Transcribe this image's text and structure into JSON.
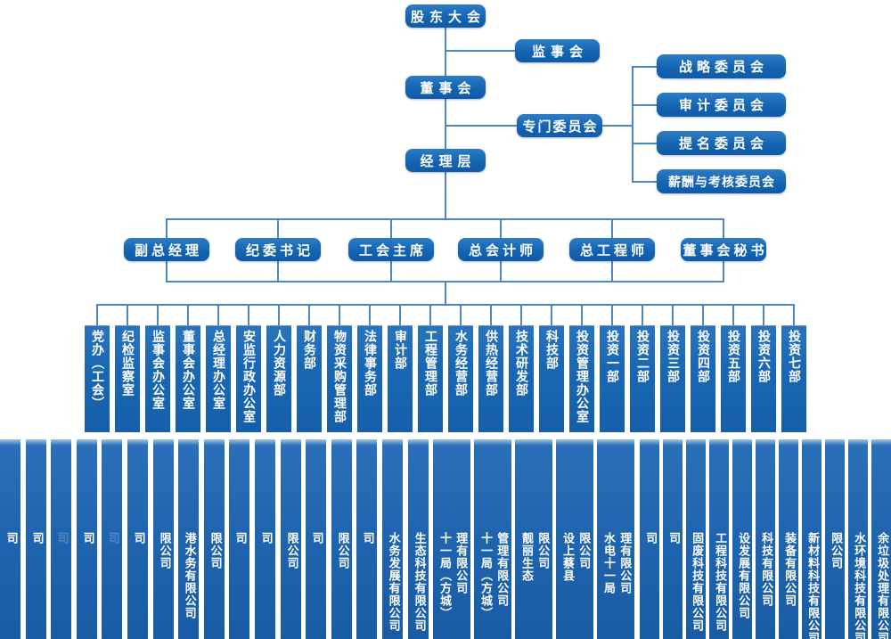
{
  "palette": {
    "node_blue": "#1464b2",
    "bar_blue": "#1d63ad",
    "line_blue": "#4d86c0",
    "text_color": "#ffffff",
    "background": "#ffffff"
  },
  "governance": {
    "shareholders_meeting": "股东大会",
    "supervisory_board": "监事会",
    "board_of_directors": "董事会",
    "special_committees": "专门委员会",
    "management_layer": "经理层",
    "committees": [
      {
        "label": "战略委员会"
      },
      {
        "label": "审计委员会"
      },
      {
        "label": "提名委员会"
      },
      {
        "label": "薪酬与考核委员会"
      }
    ]
  },
  "executives": [
    {
      "label": "副总经理"
    },
    {
      "label": "纪委书记"
    },
    {
      "label": "工会主席"
    },
    {
      "label": "总会计师"
    },
    {
      "label": "总工程师"
    },
    {
      "label": "董事会秘书"
    }
  ],
  "departments": [
    {
      "label": "党办（工会）"
    },
    {
      "label": "纪检监察室"
    },
    {
      "label": "监事会办公室"
    },
    {
      "label": "董事会办公室"
    },
    {
      "label": "总经理办公室"
    },
    {
      "label": "安监行政办公室"
    },
    {
      "label": "人力资源部"
    },
    {
      "label": "财务部"
    },
    {
      "label": "物资采购管理部"
    },
    {
      "label": "法律事务部"
    },
    {
      "label": "审计部"
    },
    {
      "label": "工程管理部"
    },
    {
      "label": "水务经营部"
    },
    {
      "label": "供热经营部"
    },
    {
      "label": "技术研发部"
    },
    {
      "label": "科技部"
    },
    {
      "label": "投资管理办公室"
    },
    {
      "label": "投资一部"
    },
    {
      "label": "投资二部"
    },
    {
      "label": "投资三部"
    },
    {
      "label": "投资四部"
    },
    {
      "label": "投资五部"
    },
    {
      "label": "投资六部"
    },
    {
      "label": "投资七部"
    }
  ],
  "companies": [
    {
      "cols": [
        "司"
      ]
    },
    {
      "cols": [
        "司"
      ]
    },
    {
      "cols": [
        "司"
      ],
      "faint": true
    },
    {
      "cols": [
        "司"
      ]
    },
    {
      "cols": [
        "司"
      ],
      "faint": true
    },
    {
      "cols": [
        "司"
      ]
    },
    {
      "cols": [
        "限公司"
      ]
    },
    {
      "cols": [
        "港水务有限公司"
      ]
    },
    {
      "cols": [
        "限公司"
      ]
    },
    {
      "cols": [
        "司"
      ]
    },
    {
      "cols": [
        "司"
      ]
    },
    {
      "cols": [
        "限公司"
      ]
    },
    {
      "cols": [
        "司"
      ]
    },
    {
      "cols": [
        "限公司"
      ]
    },
    {
      "cols": [
        "司"
      ]
    },
    {
      "cols": [
        "水务发展有限公司"
      ]
    },
    {
      "cols": [
        "生态科技有限公司"
      ]
    },
    {
      "cols": [
        "理有限公司",
        "十一局（方城）"
      ],
      "wide": true
    },
    {
      "cols": [
        "管理有限公司",
        "十一局（方城）"
      ],
      "wide": true
    },
    {
      "cols": [
        "限公司",
        "靓丽生态"
      ],
      "wide": true
    },
    {
      "cols": [
        "限公司",
        "设上蔡县"
      ],
      "wide": true
    },
    {
      "cols": [
        "理有限公司",
        "水电十一局"
      ],
      "wide": true
    },
    {
      "cols": [
        "司"
      ]
    },
    {
      "cols": [
        "司"
      ]
    },
    {
      "cols": [
        "固废科技有限公司"
      ]
    },
    {
      "cols": [
        "工程科技有限公司"
      ]
    },
    {
      "cols": [
        "设发展有限公司"
      ]
    },
    {
      "cols": [
        "科技有限公司"
      ]
    },
    {
      "cols": [
        "装备有限公司"
      ]
    },
    {
      "cols": [
        "新材料科技有限公司"
      ]
    },
    {
      "cols": [
        "限公司"
      ]
    },
    {
      "cols": [
        "水环境科技有限公司"
      ]
    },
    {
      "cols": [
        "余垃圾处理有限公司"
      ]
    }
  ]
}
